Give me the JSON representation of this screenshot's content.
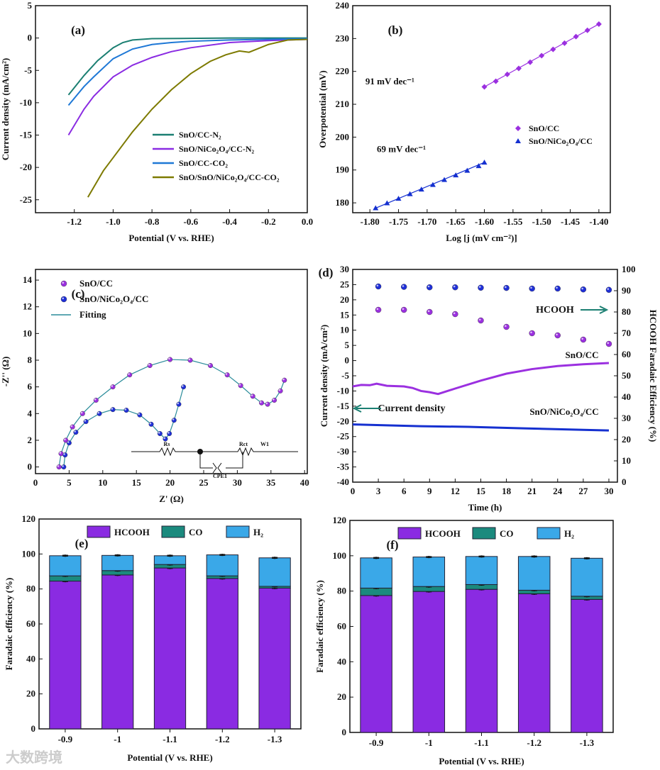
{
  "watermark": "大数跨境",
  "chart_data": [
    {
      "id": "a",
      "type": "line",
      "panel_label": "(a)",
      "xlabel": "Potential (V vs. RHE)",
      "ylabel": "Current density (mA/cm²)",
      "xlim": [
        -1.4,
        0
      ],
      "ylim": [
        -27,
        5
      ],
      "xticks": [
        -1.2,
        -1.0,
        -0.8,
        -0.6,
        -0.4,
        -0.2,
        0.0
      ],
      "yticks": [
        5,
        0,
        -5,
        -10,
        -15,
        -20,
        -25
      ],
      "xdec": 1,
      "legend_position": "center-right",
      "series": [
        {
          "name": "SnO/CC-N₂",
          "color": "#1b7f72",
          "x": [
            -1.23,
            -1.15,
            -1.08,
            -1.0,
            -0.95,
            -0.9,
            -0.8,
            -0.6,
            -0.4,
            -0.2,
            0
          ],
          "y": [
            -8.8,
            -5.8,
            -3.5,
            -1.5,
            -0.7,
            -0.3,
            -0.1,
            -0.05,
            0,
            0,
            0
          ]
        },
        {
          "name": "SnO/NiCo₂O₄/CC-N₂",
          "color": "#8a2be2",
          "x": [
            -1.23,
            -1.15,
            -1.1,
            -1.0,
            -0.9,
            -0.8,
            -0.7,
            -0.6,
            -0.4,
            -0.2,
            0
          ],
          "y": [
            -15,
            -11,
            -9,
            -6,
            -4.2,
            -3,
            -2.1,
            -1.5,
            -0.7,
            -0.4,
            -0.2
          ]
        },
        {
          "name": "SnO/CC-CO₂",
          "color": "#1e78d6",
          "x": [
            -1.23,
            -1.15,
            -1.1,
            -1.0,
            -0.9,
            -0.8,
            -0.7,
            -0.6,
            -0.4,
            -0.2,
            0
          ],
          "y": [
            -10.4,
            -7.5,
            -6,
            -3.2,
            -1.7,
            -1,
            -0.7,
            -0.5,
            -0.3,
            -0.2,
            -0.1
          ]
        },
        {
          "name": "SnO/SnO/NiCo₂O₄/CC-CO₂",
          "color": "#7d7a00",
          "x": [
            -1.13,
            -1.05,
            -1.0,
            -0.9,
            -0.8,
            -0.7,
            -0.6,
            -0.5,
            -0.42,
            -0.35,
            -0.3,
            -0.25,
            -0.2,
            -0.1,
            0
          ],
          "y": [
            -24.6,
            -20.5,
            -18.5,
            -14.5,
            -11,
            -8,
            -5.5,
            -3.6,
            -2.6,
            -2.0,
            -2.2,
            -1.6,
            -1.0,
            -0.3,
            -0.2
          ]
        }
      ]
    },
    {
      "id": "b",
      "type": "scatter",
      "panel_label": "(b)",
      "xlabel": "Log [j (mV cm⁻²)]",
      "ylabel": "Overpotential (mV)",
      "xlim": [
        -1.83,
        -1.38
      ],
      "ylim": [
        177,
        240
      ],
      "xticks": [
        -1.8,
        -1.75,
        -1.7,
        -1.65,
        -1.6,
        -1.55,
        -1.5,
        -1.45,
        -1.4
      ],
      "yticks": [
        180,
        190,
        200,
        210,
        220,
        230,
        240
      ],
      "xdec": 2,
      "annotations": [
        {
          "text": "91 mV dec⁻¹",
          "color": "#9b30e0",
          "x": -1.765,
          "y": 216
        },
        {
          "text": "69 mV dec⁻¹",
          "color": "#1530d0",
          "x": -1.745,
          "y": 195.5
        }
      ],
      "series": [
        {
          "name": "SnO/CC",
          "marker": "diamond",
          "color": "#9b30e0",
          "x": [
            -1.6,
            -1.58,
            -1.56,
            -1.54,
            -1.52,
            -1.5,
            -1.48,
            -1.46,
            -1.44,
            -1.42,
            -1.4
          ],
          "y": [
            215.3,
            217.0,
            219.1,
            220.9,
            222.8,
            224.8,
            226.7,
            228.6,
            230.6,
            232.5,
            234.4
          ]
        },
        {
          "name": "SnO/NiCo₂O₄/CC",
          "marker": "triangle",
          "color": "#1530d0",
          "x": [
            -1.79,
            -1.77,
            -1.75,
            -1.73,
            -1.71,
            -1.69,
            -1.67,
            -1.65,
            -1.63,
            -1.61,
            -1.6
          ],
          "y": [
            178.4,
            179.9,
            181.3,
            182.7,
            184.1,
            185.5,
            187.0,
            188.4,
            189.8,
            191.2,
            192.3
          ]
        }
      ]
    },
    {
      "id": "c",
      "type": "scatter",
      "panel_label": "(c)",
      "xlabel": "Z' (Ω)",
      "ylabel": "-Z'' (Ω)",
      "xlim": [
        0,
        40.4
      ],
      "ylim": [
        -0.5,
        14.8
      ],
      "xticks": [
        0,
        5,
        10,
        15,
        20,
        25,
        30,
        35,
        40
      ],
      "yticks": [
        0,
        2,
        4,
        6,
        8,
        10,
        12,
        14
      ],
      "xdec": 0,
      "circuit_labels": [
        "Rs",
        "Rct",
        "W1",
        "CPE1"
      ],
      "series": [
        {
          "name": "SnO/CC",
          "marker": "sphere",
          "color": "#9b30e0",
          "x": [
            3.5,
            3.8,
            4.5,
            5.5,
            7,
            9,
            11.5,
            14,
            17,
            20,
            23,
            26,
            28.5,
            30.5,
            32.3,
            33.6,
            34.5,
            35.5,
            36.4,
            37.0
          ],
          "y": [
            0,
            1,
            2,
            3,
            4,
            5,
            6,
            6.9,
            7.6,
            8.05,
            8,
            7.6,
            6.9,
            6.1,
            5.3,
            4.8,
            4.7,
            5.0,
            5.7,
            6.5
          ]
        },
        {
          "name": "SnO/NiCo₂O₄/CC",
          "marker": "sphere",
          "color": "#1f2fd8",
          "x": [
            4.2,
            4.4,
            5,
            6,
            7.5,
            9.5,
            11.5,
            13.5,
            15.5,
            17.2,
            18.5,
            19.3,
            19.9,
            20.6,
            21.3,
            22.0
          ],
          "y": [
            0,
            0.9,
            1.8,
            2.6,
            3.4,
            4.0,
            4.3,
            4.25,
            3.9,
            3.2,
            2.5,
            2.1,
            2.5,
            3.5,
            4.7,
            6.0
          ]
        },
        {
          "name": "Fitting",
          "marker": "line",
          "color": "#2a8c9a"
        }
      ]
    },
    {
      "id": "d",
      "type": "scatter",
      "panel_label": "(d)",
      "xlabel": "Time (h)",
      "ylabel": "Current density (mA/cm²)",
      "ylabel_right": "HCOOH Faradaic Efficiency (%)",
      "xlim": [
        0,
        31
      ],
      "ylim": [
        -40,
        30
      ],
      "ylim_right": [
        0,
        100
      ],
      "xticks": [
        0,
        3,
        6,
        9,
        12,
        15,
        18,
        21,
        24,
        27,
        30
      ],
      "yticks": [
        30,
        25,
        20,
        15,
        10,
        5,
        0,
        -5,
        -10,
        -15,
        -20,
        -25,
        -30,
        -35,
        -40
      ],
      "yticks_right": [
        0,
        10,
        20,
        30,
        40,
        50,
        60,
        70,
        80,
        90,
        100
      ],
      "xdec": 0,
      "annotations": [
        {
          "text": "HCOOH",
          "color": "#1b7f72"
        },
        {
          "text": "Current density",
          "color": "#1b7f72"
        },
        {
          "text": "SnO/CC",
          "color": "#9b30e0"
        },
        {
          "text": "SnO/NiCo₂O₄/CC",
          "color": "#1530d0"
        }
      ],
      "series": [
        {
          "name": "SnO/CC current",
          "color": "#9b30e0",
          "axis": "left",
          "x": [
            0,
            1,
            2,
            2.8,
            4,
            6,
            7,
            8,
            9,
            10,
            12,
            15,
            18,
            21,
            24,
            27,
            30
          ],
          "y": [
            -8.5,
            -8,
            -8.1,
            -7.6,
            -8.3,
            -8.5,
            -9,
            -10,
            -10.4,
            -11,
            -9.2,
            -6.6,
            -4.3,
            -2.8,
            -1.8,
            -1.2,
            -0.8
          ]
        },
        {
          "name": "SnO/NiCo₂O₄/CC current",
          "color": "#1530d0",
          "axis": "left",
          "x": [
            0,
            4,
            8,
            13.5,
            20,
            27,
            30
          ],
          "y": [
            -21,
            -21.3,
            -21.6,
            -21.8,
            -22.3,
            -22.8,
            -23
          ]
        },
        {
          "name": "SnO/CC FE",
          "color": "#9b30e0",
          "axis": "right",
          "marker": "sphere",
          "x": [
            3,
            6,
            9,
            12,
            15,
            18,
            21,
            24,
            27,
            30
          ],
          "y": [
            81,
            81,
            80,
            79,
            76,
            73,
            70,
            69,
            67,
            65
          ]
        },
        {
          "name": "SnO/NiCo₂O₄/CC FE",
          "color": "#1f2fd8",
          "axis": "right",
          "marker": "sphere",
          "x": [
            3,
            6,
            9,
            12,
            15,
            18,
            21,
            24,
            27,
            30
          ],
          "y": [
            92,
            91.8,
            91.6,
            91.6,
            91.4,
            91.3,
            91,
            91,
            90.6,
            90.4
          ]
        }
      ]
    },
    {
      "id": "e",
      "type": "bar",
      "stacked": true,
      "panel_label": "(e)",
      "xlabel": "Potential (V vs. RHE)",
      "ylabel": "Faradaic efficiency (%)",
      "categories": [
        "-0.9",
        "-1",
        "-1.1",
        "-1.2",
        "-1.3"
      ],
      "ylim": [
        0,
        120
      ],
      "yticks": [
        0,
        20,
        40,
        60,
        80,
        100,
        120
      ],
      "series": [
        {
          "name": "HCOOH",
          "color": "#8a2be2",
          "values": [
            84.5,
            88,
            92,
            86,
            80.5
          ]
        },
        {
          "name": "CO",
          "color": "#1b8a7e",
          "values": [
            3,
            2.5,
            2,
            1.5,
            1
          ]
        },
        {
          "name": "H₂",
          "color": "#3aa8e8",
          "values": [
            11.5,
            8.7,
            5,
            12,
            16.3
          ]
        }
      ]
    },
    {
      "id": "f",
      "type": "bar",
      "stacked": true,
      "panel_label": "(f)",
      "xlabel": "Potential (V vs. RHE)",
      "ylabel": "Faradaic efficiency (%)",
      "categories": [
        "-0.9",
        "-1",
        "-1.1",
        "-1.2",
        "-1.3"
      ],
      "ylim": [
        0,
        120
      ],
      "yticks": [
        0,
        20,
        40,
        60,
        80,
        100,
        120
      ],
      "series": [
        {
          "name": "HCOOH",
          "color": "#8a2be2",
          "values": [
            77.5,
            79.8,
            81,
            78.5,
            75.3
          ]
        },
        {
          "name": "CO",
          "color": "#1b8a7e",
          "values": [
            4.2,
            2.8,
            2.7,
            2,
            1.8
          ]
        },
        {
          "name": "H₂",
          "color": "#3aa8e8",
          "values": [
            17.1,
            16.7,
            15.9,
            19.1,
            21.5
          ]
        }
      ]
    }
  ]
}
